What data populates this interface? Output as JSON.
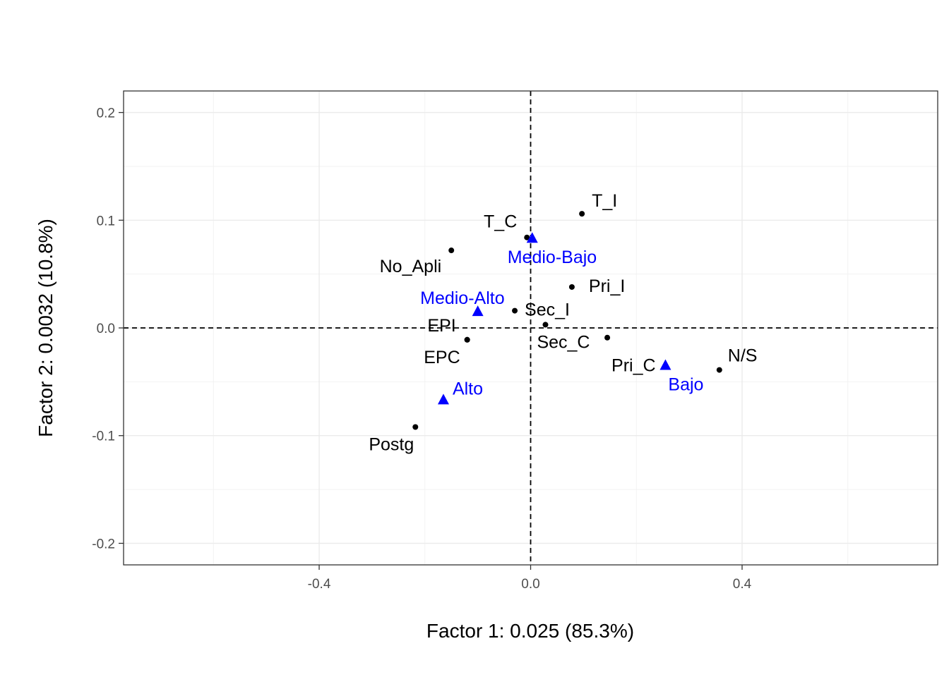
{
  "chart_data": {
    "type": "scatter",
    "title": "",
    "xlabel": "Factor 1: 0.025 (85.3%)",
    "ylabel": "Factor 2: 0.0032 (10.8%)",
    "xlim": [
      -0.77,
      0.77
    ],
    "ylim": [
      -0.22,
      0.22
    ],
    "x_ticks": [
      -0.4,
      0.0,
      0.4
    ],
    "x_tick_labels": [
      "-0.4",
      "0.0",
      "0.4"
    ],
    "y_ticks": [
      -0.2,
      -0.1,
      0.0,
      0.1,
      0.2
    ],
    "y_tick_labels": [
      "-0.2",
      "-0.1",
      "0.0",
      "0.1",
      "0.2"
    ],
    "grid": true,
    "reference_lines": {
      "x": 0,
      "y": 0,
      "style": "dashed"
    },
    "series": [
      {
        "color": "#000000",
        "marker": "circle",
        "points": [
          {
            "label": "T_I",
            "x": 0.097,
            "y": 0.106
          },
          {
            "label": "T_C",
            "x": -0.007,
            "y": 0.084
          },
          {
            "label": "No_Apli",
            "x": -0.15,
            "y": 0.072
          },
          {
            "label": "Pri_I",
            "x": 0.078,
            "y": 0.038
          },
          {
            "label": "Sec_I",
            "x": -0.03,
            "y": 0.016
          },
          {
            "label": "Sec_C",
            "x": 0.028,
            "y": 0.003
          },
          {
            "label": "EPI",
            "x": -0.12,
            "y": -0.011
          },
          {
            "label": "EPC",
            "x": -0.12,
            "y": -0.011
          },
          {
            "label": "Pri_C",
            "x": 0.145,
            "y": -0.009
          },
          {
            "label": "N/S",
            "x": 0.357,
            "y": -0.039
          },
          {
            "label": "Postg",
            "x": -0.218,
            "y": -0.092
          }
        ]
      },
      {
        "color": "#0000ff",
        "marker": "triangle",
        "points": [
          {
            "label": "Medio-Bajo",
            "x": 0.003,
            "y": 0.083
          },
          {
            "label": "Medio-Alto",
            "x": -0.1,
            "y": 0.015
          },
          {
            "label": "Bajo",
            "x": 0.255,
            "y": -0.035
          },
          {
            "label": "Alto",
            "x": -0.165,
            "y": -0.067
          }
        ]
      }
    ]
  }
}
